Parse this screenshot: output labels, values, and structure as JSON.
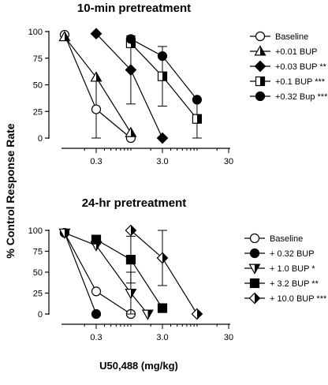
{
  "ylabel": "% Control  Response Rate",
  "chart_data": [
    {
      "type": "line",
      "title": "10-min pretreatment",
      "xlabel": "",
      "ylabel": "% Control  Response Rate",
      "xscale": "log",
      "xlim": [
        0.1,
        30
      ],
      "ylim": [
        0,
        100
      ],
      "xticks": [
        0.3,
        3.0,
        30
      ],
      "xtick_labels": [
        "0.3",
        "3.0",
        "30"
      ],
      "yticks": [
        0,
        25,
        50,
        75,
        100
      ],
      "ytick_labels": [
        "0",
        "25",
        "50",
        "75",
        "100"
      ],
      "legend_position": "right",
      "series": [
        {
          "name": "Baseline",
          "marker": "circle-open",
          "x": [
            0.1,
            0.3,
            1.0
          ],
          "y": [
            97,
            27,
            0
          ],
          "err": [
            0,
            27,
            0
          ]
        },
        {
          "name": "+0.01 BUP",
          "marker": "triangle-half",
          "x": [
            0.1,
            0.3,
            1.0
          ],
          "y": [
            95,
            57,
            5
          ],
          "err": [
            0,
            0,
            0
          ]
        },
        {
          "name": "+0.03 BUP **",
          "marker": "diamond-filled",
          "x": [
            0.3,
            1.0,
            3.0
          ],
          "y": [
            98,
            64,
            0
          ],
          "err": [
            0,
            32,
            0
          ]
        },
        {
          "name": "+0.1 BUP ***",
          "marker": "square-half",
          "x": [
            1.0,
            3.0,
            10.0
          ],
          "y": [
            89,
            58,
            18
          ],
          "err": [
            0,
            28,
            18
          ]
        },
        {
          "name": "+0.32 Bup ***",
          "marker": "circle-filled",
          "x": [
            1.0,
            3.0,
            10.0
          ],
          "y": [
            93,
            77,
            36
          ],
          "err": [
            0,
            0,
            0
          ]
        }
      ]
    },
    {
      "type": "line",
      "title": "24-hr pretreatment",
      "xlabel": "U50,488 (mg/kg)",
      "ylabel": "% Control  Response Rate",
      "xscale": "log",
      "xlim": [
        0.1,
        30
      ],
      "ylim": [
        0,
        100
      ],
      "xticks": [
        0.3,
        3.0,
        30
      ],
      "xtick_labels": [
        "0.3",
        "3.0",
        "30"
      ],
      "yticks": [
        0,
        25,
        50,
        75,
        100
      ],
      "ytick_labels": [
        "0",
        "25",
        "50",
        "75",
        "100"
      ],
      "legend_position": "right",
      "series": [
        {
          "name": "Baseline",
          "marker": "circle-open",
          "x": [
            0.1,
            0.3,
            1.0
          ],
          "y": [
            97,
            27,
            0
          ],
          "err": [
            0,
            0,
            0
          ]
        },
        {
          "name": "+ 0.32 BUP",
          "marker": "circle-filled",
          "x": [
            0.1,
            0.3
          ],
          "y": [
            97,
            0
          ],
          "err": [
            0,
            0
          ]
        },
        {
          "name": "+ 1.0 BUP *",
          "marker": "triangle-down-half",
          "x": [
            0.1,
            0.3,
            1.0,
            1.8
          ],
          "y": [
            97,
            82,
            25,
            0
          ],
          "err": [
            0,
            0,
            25,
            0
          ]
        },
        {
          "name": "+ 3.2 BUP **",
          "marker": "square-filled",
          "x": [
            0.3,
            1.0,
            3.0
          ],
          "y": [
            89,
            65,
            7
          ],
          "err": [
            0,
            28,
            0
          ]
        },
        {
          "name": "+ 10.0 BUP ***",
          "marker": "diamond-half",
          "x": [
            1.0,
            3.0,
            10.0
          ],
          "y": [
            100,
            67,
            0
          ],
          "err": [
            0,
            33,
            0
          ]
        }
      ]
    }
  ]
}
